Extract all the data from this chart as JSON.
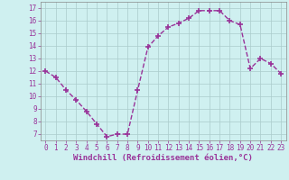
{
  "x": [
    0,
    1,
    2,
    3,
    4,
    5,
    6,
    7,
    8,
    9,
    10,
    11,
    12,
    13,
    14,
    15,
    16,
    17,
    18,
    19,
    20,
    21,
    22,
    23
  ],
  "y": [
    12.0,
    11.5,
    10.5,
    9.7,
    8.8,
    7.8,
    6.8,
    7.0,
    7.0,
    10.5,
    13.9,
    14.8,
    15.5,
    15.8,
    16.2,
    16.8,
    16.8,
    16.8,
    16.0,
    15.7,
    12.2,
    13.0,
    12.6,
    11.8
  ],
  "line_color": "#993399",
  "marker": "+",
  "marker_size": 4,
  "marker_lw": 1.2,
  "bg_color": "#cff0f0",
  "grid_color": "#aacccc",
  "xlabel": "Windchill (Refroidissement éolien,°C)",
  "xlabel_color": "#993399",
  "tick_color": "#993399",
  "xlim": [
    -0.5,
    23.5
  ],
  "ylim": [
    6.5,
    17.5
  ],
  "yticks": [
    7,
    8,
    9,
    10,
    11,
    12,
    13,
    14,
    15,
    16,
    17
  ],
  "xticks": [
    0,
    1,
    2,
    3,
    4,
    5,
    6,
    7,
    8,
    9,
    10,
    11,
    12,
    13,
    14,
    15,
    16,
    17,
    18,
    19,
    20,
    21,
    22,
    23
  ],
  "tick_fontsize": 5.5,
  "xlabel_fontsize": 6.5,
  "line_width": 1.0
}
